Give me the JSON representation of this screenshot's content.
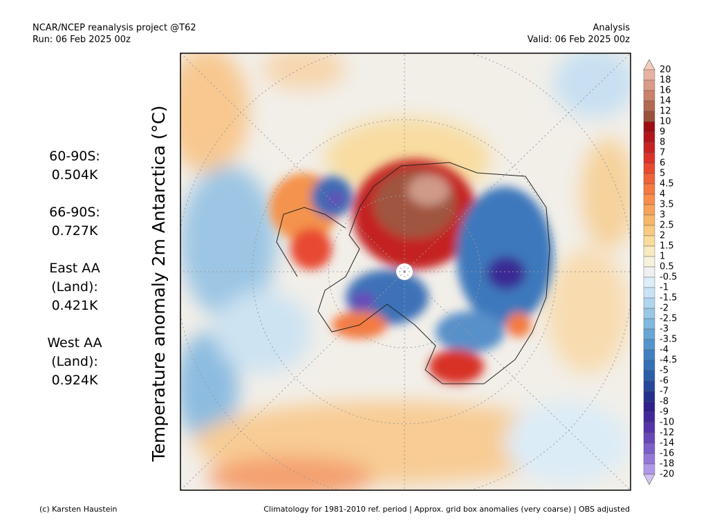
{
  "header": {
    "left": [
      "NCAR/NCEP reanalysis project @T62",
      "Run: 06 Feb 2025 00z"
    ],
    "right": [
      "Analysis",
      "Valid: 06 Feb 2025 00z"
    ]
  },
  "map_title": "Temperature anomaly 2m Antarctica (°C)",
  "stats": [
    [
      "60-90S:",
      "0.504K"
    ],
    [
      "66-90S:",
      "0.727K"
    ],
    [
      "East AA",
      "(Land):",
      "0.421K"
    ],
    [
      "West AA",
      "(Land):",
      "0.924K"
    ]
  ],
  "colorbar": {
    "levels": [
      20,
      18,
      16,
      14,
      12,
      10,
      9,
      8,
      7,
      6,
      5,
      4.5,
      4,
      3.5,
      3,
      2.5,
      2,
      1.5,
      1,
      0.5,
      -0.5,
      -1,
      -1.5,
      -2,
      -2.5,
      -3,
      -3.5,
      -4,
      -4.5,
      -5,
      -6,
      -7,
      -8,
      -9,
      -10,
      -12,
      -14,
      -16,
      -18,
      -20
    ],
    "colors": [
      "#f6cbbb",
      "#e8b2a2",
      "#d99b87",
      "#c9826b",
      "#b26a52",
      "#9a523a",
      "#9c0e12",
      "#b2161a",
      "#c82222",
      "#dc3228",
      "#e84a30",
      "#f06238",
      "#f47a42",
      "#f88e4c",
      "#f8a25a",
      "#f8b66a",
      "#f8ca82",
      "#f8dc9a",
      "#f8ebc0",
      "#f6f2dc",
      "#f0f0f0",
      "#dceef8",
      "#c8e4f4",
      "#b0d6ee",
      "#98c8e6",
      "#80b8de",
      "#68a6d6",
      "#5494cc",
      "#4080c0",
      "#3470b4",
      "#2c5ea8",
      "#26489a",
      "#24308c",
      "#30208a",
      "#40289a",
      "#5434a8",
      "#6848b8",
      "#7c60c8",
      "#9478d8",
      "#b098e8",
      "#d2c2f4"
    ]
  },
  "footer": {
    "left": "(c) Karsten Haustein",
    "right": "Climatology for 1981-2010 ref. period | Approx. grid box anomalies (very coarse) | OBS adjusted"
  }
}
